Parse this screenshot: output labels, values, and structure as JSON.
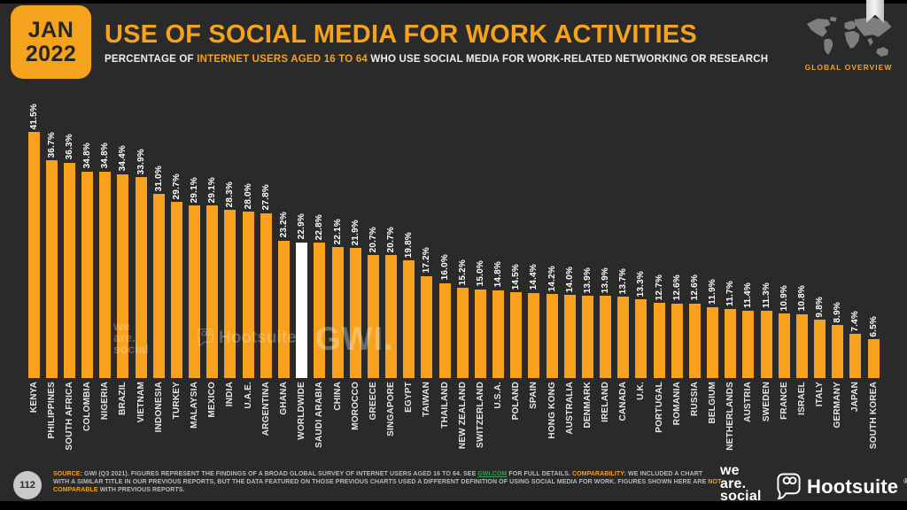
{
  "header": {
    "date_line1": "JAN",
    "date_line2": "2022",
    "title": "USE OF SOCIAL MEDIA FOR WORK ACTIVITIES",
    "subtitle_prefix": "PERCENTAGE OF ",
    "subtitle_highlight": "INTERNET USERS AGED 16 TO 64",
    "subtitle_suffix": " WHO USE SOCIAL MEDIA FOR WORK-RELATED NETWORKING OR RESEARCH",
    "corner_label": "GLOBAL OVERVIEW"
  },
  "chart_data": {
    "type": "bar",
    "title": "USE OF SOCIAL MEDIA FOR WORK ACTIVITIES",
    "ylabel": "PERCENTAGE OF INTERNET USERS AGED 16 TO 64",
    "unit": "%",
    "ylim": [
      0,
      45
    ],
    "grid": false,
    "legend": "none",
    "categories": [
      "KENYA",
      "PHILIPPINES",
      "SOUTH AFRICA",
      "COLOMBIA",
      "NIGERIA",
      "BRAZIL",
      "VIETNAM",
      "INDONESIA",
      "TURKEY",
      "MALAYSIA",
      "MEXICO",
      "INDIA",
      "U.A.E.",
      "ARGENTINA",
      "GHANA",
      "WORLDWIDE",
      "SAUDI ARABIA",
      "CHINA",
      "MOROCCO",
      "GREECE",
      "SINGAPORE",
      "EGYPT",
      "TAIWAN",
      "THAILAND",
      "NEW ZEALAND",
      "SWITZERLAND",
      "U.S.A.",
      "POLAND",
      "SPAIN",
      "HONG KONG",
      "AUSTRALIA",
      "DENMARK",
      "IRELAND",
      "CANADA",
      "U.K.",
      "PORTUGAL",
      "ROMANIA",
      "RUSSIA",
      "BELGIUM",
      "NETHERLANDS",
      "AUSTRIA",
      "SWEDEN",
      "FRANCE",
      "ISRAEL",
      "ITALY",
      "GERMANY",
      "JAPAN",
      "SOUTH KOREA"
    ],
    "values": [
      41.5,
      36.7,
      36.3,
      34.8,
      34.8,
      34.4,
      33.9,
      31.0,
      29.7,
      29.1,
      29.1,
      28.3,
      28.0,
      27.8,
      23.2,
      22.9,
      22.8,
      22.1,
      21.9,
      20.7,
      20.7,
      19.8,
      17.2,
      16.0,
      15.2,
      15.0,
      14.8,
      14.5,
      14.4,
      14.2,
      14.0,
      13.9,
      13.9,
      13.7,
      13.3,
      12.7,
      12.6,
      12.6,
      11.9,
      11.7,
      11.4,
      11.3,
      10.9,
      10.8,
      9.8,
      8.9,
      7.4,
      6.5
    ],
    "highlight_category": "WORLDWIDE",
    "bar_color": "#F7A11C",
    "highlight_color": "#FFFFFF"
  },
  "watermarks": {
    "wearesocial_lines": [
      "we",
      "are.",
      "social"
    ],
    "hootsuite_label": "Hootsuite",
    "gwi_label": "GWI."
  },
  "footer": {
    "page_number": "112",
    "source_lines": [
      [
        {
          "t": "SOURCE:",
          "c": "accent"
        },
        {
          "t": " GWI (Q3 2021). FIGURES REPRESENT THE FINDINGS OF A BROAD GLOBAL SURVEY OF INTERNET USERS AGED 16 TO 64. SEE "
        },
        {
          "t": "GWI.COM",
          "c": "green"
        },
        {
          "t": " FOR FULL DETAILS. "
        },
        {
          "t": "COMPARABILITY:",
          "c": "accent"
        },
        {
          "t": " WE INCLUDED A CHART"
        }
      ],
      [
        {
          "t": "WITH A SIMILAR TITLE IN OUR PREVIOUS REPORTS, BUT THE DATA FEATURED ON THOSE PREVIOUS CHARTS USED A DIFFERENT DEFINITION OF USING SOCIAL MEDIA FOR WORK. FIGURES SHOWN HERE ARE "
        },
        {
          "t": "NOT",
          "c": "accent"
        }
      ],
      [
        {
          "t": "COMPARABLE",
          "c": "accent"
        },
        {
          "t": " WITH PREVIOUS REPORTS."
        }
      ]
    ],
    "wearesocial_lines": [
      "we",
      "are.",
      "social"
    ],
    "hootsuite_label": "Hootsuite",
    "registered_mark": "®"
  },
  "colors": {
    "accent": "#F5A21C",
    "bar": "#F7A11C",
    "highlight_bar": "#FFFFFF",
    "background": "#2A2A2A",
    "link_green": "#3D9B55"
  }
}
